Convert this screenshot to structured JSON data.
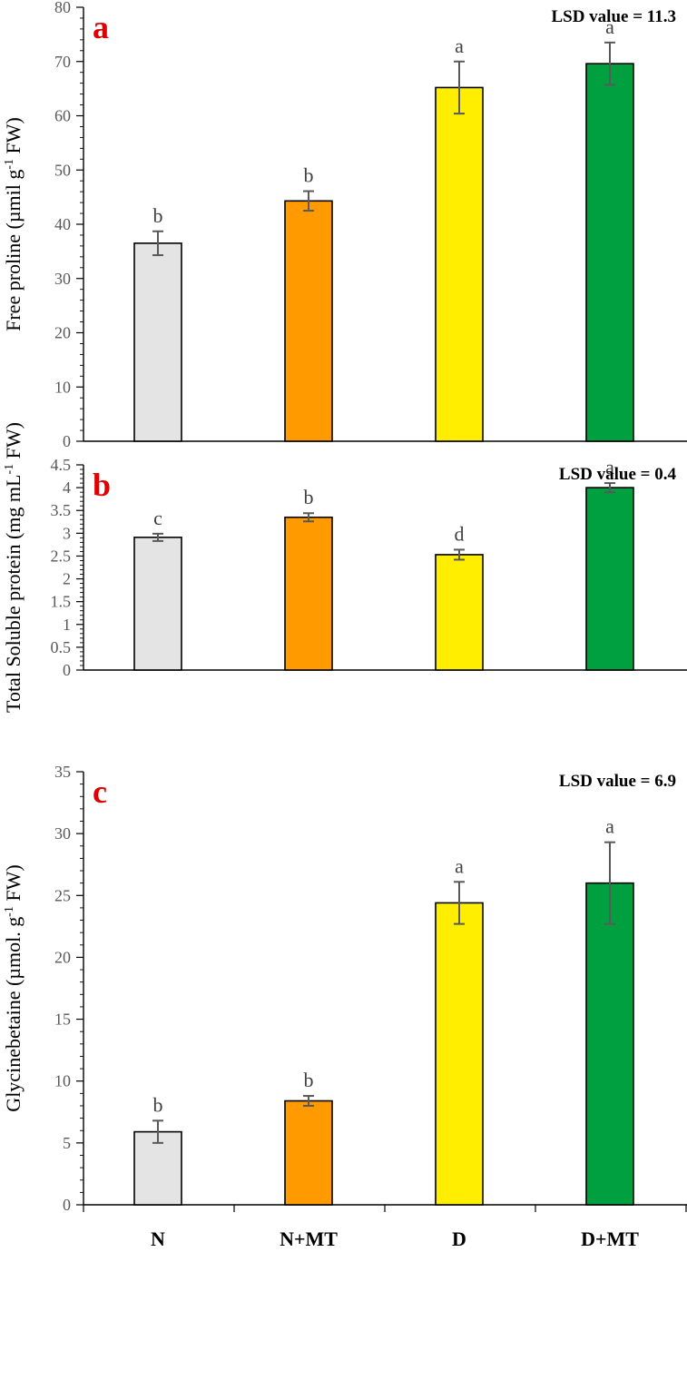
{
  "chart_data": [
    {
      "type": "bar",
      "panel_letter": "a",
      "annotation": "LSD value = 11.3",
      "ylabel_parts": [
        "Free proline (µmil g",
        "-1",
        " FW)"
      ],
      "categories": [
        "N",
        "N+MT",
        "D",
        "D+MT"
      ],
      "values": [
        36.5,
        44.3,
        65.2,
        69.6
      ],
      "errors": [
        2.2,
        1.8,
        4.8,
        3.9
      ],
      "significance": [
        "b",
        "b",
        "a",
        "a"
      ],
      "colors": [
        "#e4e4e4",
        "#ff9a00",
        "#ffee00",
        "#00a040"
      ],
      "ylim": [
        0,
        80
      ],
      "yticks": [
        0,
        10,
        20,
        30,
        40,
        50,
        60,
        70,
        80
      ],
      "ytick_labels": [
        "0",
        "10",
        "20",
        "30",
        "40",
        "50",
        "60",
        "70",
        "80"
      ]
    },
    {
      "type": "bar",
      "panel_letter": "b",
      "annotation": "LSD value = 0.4",
      "ylabel_parts": [
        "Total Soluble protein (mg mL",
        "-1",
        " FW)"
      ],
      "categories": [
        "N",
        "N+MT",
        "D",
        "D+MT"
      ],
      "values": [
        2.91,
        3.35,
        2.53,
        4.0
      ],
      "errors": [
        0.08,
        0.09,
        0.11,
        0.1
      ],
      "significance": [
        "c",
        "b",
        "d",
        "a"
      ],
      "colors": [
        "#e4e4e4",
        "#ff9a00",
        "#ffee00",
        "#00a040"
      ],
      "ylim": [
        0,
        4.5
      ],
      "yticks": [
        0,
        0.5,
        1,
        1.5,
        2,
        2.5,
        3,
        3.5,
        4,
        4.5
      ],
      "ytick_labels": [
        "0",
        "0.5",
        "1",
        "1.5",
        "2",
        "2.5",
        "3",
        "3.5",
        "4",
        "4.5"
      ]
    },
    {
      "type": "bar",
      "panel_letter": "c",
      "annotation": "LSD value = 6.9",
      "ylabel_parts": [
        "Glycinebetaine (µmol. g",
        "-1",
        " FW)"
      ],
      "categories": [
        "N",
        "N+MT",
        "D",
        "D+MT"
      ],
      "values": [
        5.9,
        8.4,
        24.4,
        26.0
      ],
      "errors": [
        0.9,
        0.4,
        1.7,
        3.3
      ],
      "significance": [
        "b",
        "b",
        "a",
        "a"
      ],
      "colors": [
        "#e4e4e4",
        "#ff9a00",
        "#ffee00",
        "#00a040"
      ],
      "ylim": [
        0,
        35
      ],
      "yticks": [
        0,
        5,
        10,
        15,
        20,
        25,
        30,
        35
      ],
      "ytick_labels": [
        "0",
        "5",
        "10",
        "15",
        "20",
        "25",
        "30",
        "35"
      ],
      "show_category_labels": true
    }
  ]
}
